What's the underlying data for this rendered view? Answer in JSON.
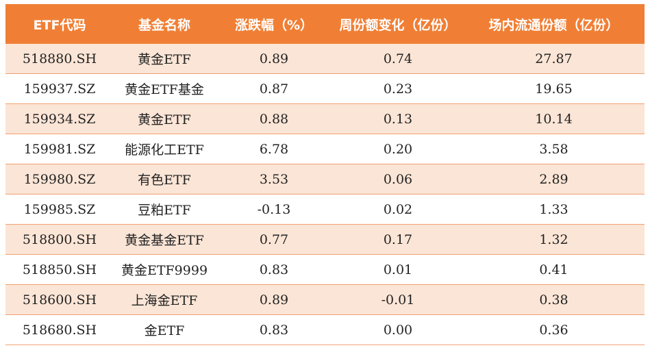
{
  "header": {
    "code": "ETF代码",
    "name": "基金名称",
    "change_pct": "涨跌幅（%）",
    "weekly_share_change": "周份额变化（亿份）",
    "floating_shares": "场内流通份额（亿份）"
  },
  "rows": [
    {
      "code": "518880.SH",
      "name": "黄金ETF",
      "change_pct": "0.89",
      "weekly_share_change": "0.74",
      "floating_shares": "27.87"
    },
    {
      "code": "159937.SZ",
      "name": "黄金ETF基金",
      "change_pct": "0.87",
      "weekly_share_change": "0.23",
      "floating_shares": "19.65"
    },
    {
      "code": "159934.SZ",
      "name": "黄金ETF",
      "change_pct": "0.88",
      "weekly_share_change": "0.13",
      "floating_shares": "10.14"
    },
    {
      "code": "159981.SZ",
      "name": "能源化工ETF",
      "change_pct": "6.78",
      "weekly_share_change": "0.20",
      "floating_shares": "3.58"
    },
    {
      "code": "159980.SZ",
      "name": "有色ETF",
      "change_pct": "3.53",
      "weekly_share_change": "0.06",
      "floating_shares": "2.89"
    },
    {
      "code": "159985.SZ",
      "name": "豆粕ETF",
      "change_pct": "-0.13",
      "weekly_share_change": "0.02",
      "floating_shares": "1.33"
    },
    {
      "code": "518800.SH",
      "name": "黄金基金ETF",
      "change_pct": "0.77",
      "weekly_share_change": "0.17",
      "floating_shares": "1.32"
    },
    {
      "code": "518850.SH",
      "name": "黄金ETF9999",
      "change_pct": "0.83",
      "weekly_share_change": "0.01",
      "floating_shares": "0.41"
    },
    {
      "code": "518600.SH",
      "name": "上海金ETF",
      "change_pct": "0.89",
      "weekly_share_change": "-0.01",
      "floating_shares": "0.38"
    },
    {
      "code": "518680.SH",
      "name": "金ETF",
      "change_pct": "0.83",
      "weekly_share_change": "0.00",
      "floating_shares": "0.36"
    }
  ],
  "colors": {
    "header_bg": "#f07f35",
    "header_text": "#ffffff",
    "stripe_bg": "#fbe5d6",
    "row_bg": "#ffffff",
    "row_border": "#f0a070",
    "body_text": "#222222"
  }
}
